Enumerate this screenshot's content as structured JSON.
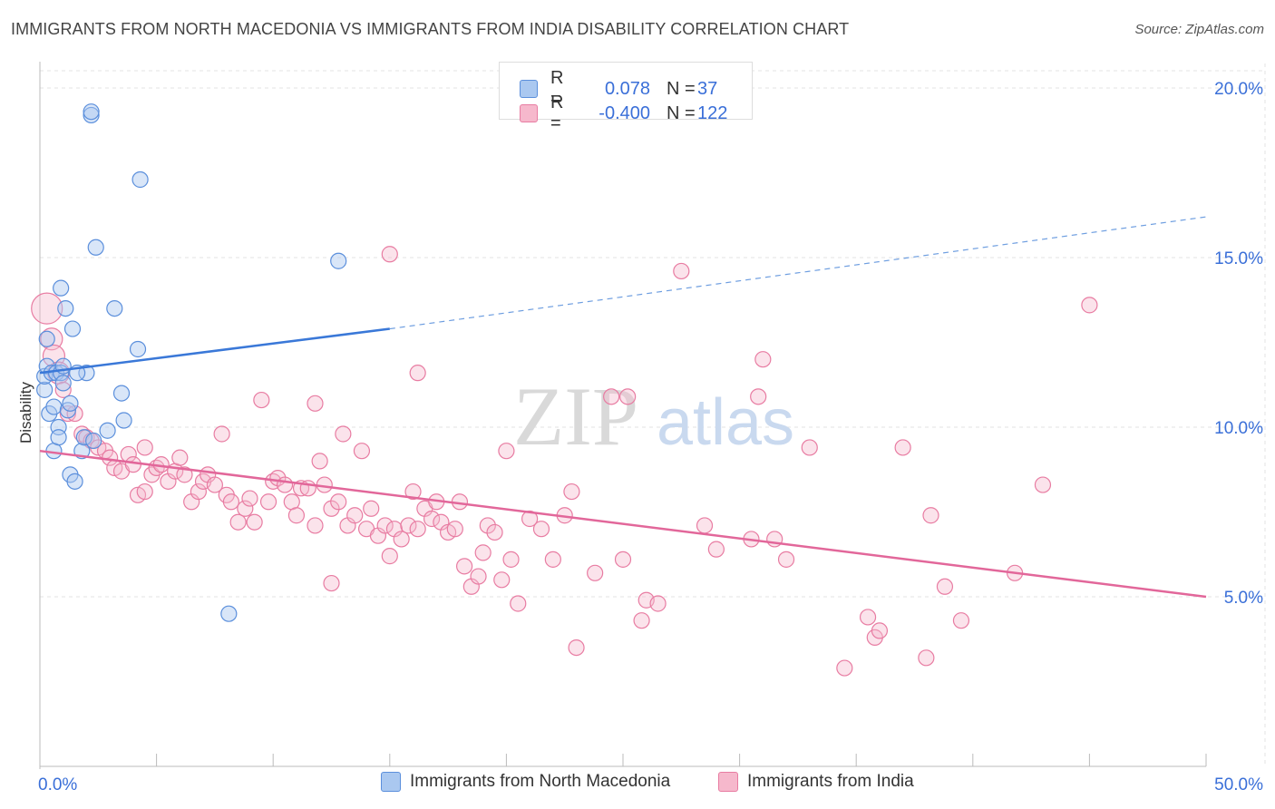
{
  "title": "IMMIGRANTS FROM NORTH MACEDONIA VS IMMIGRANTS FROM INDIA DISABILITY CORRELATION CHART",
  "source": "Source: ZipAtlas.com",
  "watermark": {
    "zip": "ZIP",
    "atlas": "atlas"
  },
  "colors": {
    "blue": "#5b8fdc",
    "blue_fill": "#aac8f0",
    "pink": "#e87ca2",
    "pink_fill": "#f6b8cc",
    "axis_label": "#3a6fd8"
  },
  "legend": {
    "rows": [
      {
        "r_label": "R =",
        "r_value": "0.078",
        "n_label": "N =",
        "n_value": "37",
        "color": "#aac8f0"
      },
      {
        "r_label": "R =",
        "r_value": "-0.400",
        "n_label": "N =",
        "n_value": "122",
        "color": "#f6b8cc"
      }
    ]
  },
  "chart_data": {
    "type": "scatter",
    "xlabel": "",
    "ylabel": "Disability",
    "xlim": [
      0,
      50
    ],
    "ylim": [
      0,
      21
    ],
    "x_tick_labels": [
      "0.0%",
      "50.0%"
    ],
    "y_tick_labels": [
      "5.0%",
      "10.0%",
      "15.0%",
      "20.0%"
    ],
    "y_ticks": [
      5,
      10,
      15,
      20
    ],
    "series": [
      {
        "name": "Immigrants from North Macedonia",
        "color": "#5b8fdc",
        "trend": {
          "x0": 0,
          "y0": 11.6,
          "x1": 15,
          "y1": 12.9,
          "x_dash_end": 50,
          "y_dash_end": 16.2
        },
        "points": [
          [
            0.2,
            11.1
          ],
          [
            0.2,
            11.5
          ],
          [
            0.3,
            12.6
          ],
          [
            0.3,
            11.8
          ],
          [
            0.5,
            11.6
          ],
          [
            0.4,
            10.4
          ],
          [
            0.6,
            10.6
          ],
          [
            0.6,
            9.3
          ],
          [
            0.7,
            11.6
          ],
          [
            0.8,
            10.0
          ],
          [
            0.8,
            9.7
          ],
          [
            0.9,
            14.1
          ],
          [
            0.9,
            11.6
          ],
          [
            1.0,
            11.8
          ],
          [
            1.0,
            11.3
          ],
          [
            1.1,
            13.5
          ],
          [
            1.2,
            10.5
          ],
          [
            1.3,
            10.7
          ],
          [
            1.4,
            12.9
          ],
          [
            1.3,
            8.6
          ],
          [
            1.5,
            8.4
          ],
          [
            1.8,
            9.3
          ],
          [
            1.9,
            9.7
          ],
          [
            2.0,
            11.6
          ],
          [
            2.2,
            19.2
          ],
          [
            2.2,
            19.3
          ],
          [
            2.4,
            15.3
          ],
          [
            2.9,
            9.9
          ],
          [
            3.2,
            13.5
          ],
          [
            3.5,
            11.0
          ],
          [
            3.6,
            10.2
          ],
          [
            4.2,
            12.3
          ],
          [
            4.3,
            17.3
          ],
          [
            8.1,
            4.5
          ],
          [
            12.8,
            14.9
          ],
          [
            1.6,
            11.6
          ],
          [
            2.3,
            9.6
          ]
        ]
      },
      {
        "name": "Immigrants from India",
        "color": "#e87ca2",
        "trend": {
          "x0": 0,
          "y0": 9.3,
          "x1": 50,
          "y1": 5.0
        },
        "points": [
          [
            0.3,
            13.5
          ],
          [
            0.5,
            12.6
          ],
          [
            0.6,
            12.1
          ],
          [
            0.8,
            11.6
          ],
          [
            1.0,
            11.1
          ],
          [
            1.2,
            10.4
          ],
          [
            1.5,
            10.4
          ],
          [
            1.8,
            9.8
          ],
          [
            2.0,
            9.7
          ],
          [
            2.2,
            9.6
          ],
          [
            2.5,
            9.4
          ],
          [
            2.8,
            9.3
          ],
          [
            3.0,
            9.1
          ],
          [
            3.2,
            8.8
          ],
          [
            3.5,
            8.7
          ],
          [
            3.8,
            9.2
          ],
          [
            4.0,
            8.9
          ],
          [
            4.2,
            8.0
          ],
          [
            4.5,
            8.1
          ],
          [
            4.5,
            9.4
          ],
          [
            4.8,
            8.6
          ],
          [
            5.0,
            8.8
          ],
          [
            5.2,
            8.9
          ],
          [
            5.5,
            8.4
          ],
          [
            5.8,
            8.7
          ],
          [
            6.0,
            9.1
          ],
          [
            6.2,
            8.6
          ],
          [
            6.5,
            7.8
          ],
          [
            6.8,
            8.1
          ],
          [
            7.0,
            8.4
          ],
          [
            7.2,
            8.6
          ],
          [
            7.5,
            8.3
          ],
          [
            7.8,
            9.8
          ],
          [
            8.0,
            8.0
          ],
          [
            8.2,
            7.8
          ],
          [
            8.5,
            7.2
          ],
          [
            8.8,
            7.6
          ],
          [
            9.0,
            7.9
          ],
          [
            9.2,
            7.2
          ],
          [
            9.5,
            10.8
          ],
          [
            9.8,
            7.8
          ],
          [
            10.0,
            8.4
          ],
          [
            10.2,
            8.5
          ],
          [
            10.5,
            8.3
          ],
          [
            10.8,
            7.8
          ],
          [
            11.0,
            7.4
          ],
          [
            11.2,
            8.2
          ],
          [
            11.5,
            8.2
          ],
          [
            11.8,
            7.1
          ],
          [
            12.0,
            9.0
          ],
          [
            12.2,
            8.3
          ],
          [
            12.5,
            7.6
          ],
          [
            12.8,
            7.8
          ],
          [
            13.0,
            9.8
          ],
          [
            13.2,
            7.1
          ],
          [
            13.5,
            7.4
          ],
          [
            13.8,
            9.3
          ],
          [
            14.0,
            7.0
          ],
          [
            14.2,
            7.6
          ],
          [
            14.5,
            6.8
          ],
          [
            14.8,
            7.1
          ],
          [
            15.0,
            6.2
          ],
          [
            15.2,
            7.0
          ],
          [
            15.5,
            6.7
          ],
          [
            15.8,
            7.1
          ],
          [
            16.0,
            8.1
          ],
          [
            16.2,
            7.0
          ],
          [
            16.5,
            7.6
          ],
          [
            16.8,
            7.3
          ],
          [
            17.0,
            7.8
          ],
          [
            17.2,
            7.2
          ],
          [
            17.5,
            6.9
          ],
          [
            17.8,
            7.0
          ],
          [
            18.0,
            7.8
          ],
          [
            18.2,
            5.9
          ],
          [
            18.5,
            5.3
          ],
          [
            18.8,
            5.6
          ],
          [
            19.0,
            6.3
          ],
          [
            19.2,
            7.1
          ],
          [
            19.5,
            6.9
          ],
          [
            19.8,
            5.5
          ],
          [
            20.0,
            9.3
          ],
          [
            20.2,
            6.1
          ],
          [
            20.5,
            4.8
          ],
          [
            21.0,
            7.3
          ],
          [
            21.5,
            7.0
          ],
          [
            22.0,
            6.1
          ],
          [
            22.5,
            7.4
          ],
          [
            22.8,
            8.1
          ],
          [
            23.0,
            3.5
          ],
          [
            23.8,
            5.7
          ],
          [
            24.5,
            10.9
          ],
          [
            25.0,
            6.1
          ],
          [
            25.2,
            10.9
          ],
          [
            25.8,
            4.3
          ],
          [
            26.0,
            4.9
          ],
          [
            26.5,
            4.8
          ],
          [
            27.5,
            14.6
          ],
          [
            28.5,
            7.1
          ],
          [
            29.0,
            6.4
          ],
          [
            30.5,
            6.7
          ],
          [
            30.8,
            10.9
          ],
          [
            31.0,
            12.0
          ],
          [
            31.5,
            6.7
          ],
          [
            32.0,
            6.1
          ],
          [
            33.0,
            9.4
          ],
          [
            34.5,
            2.9
          ],
          [
            35.5,
            4.4
          ],
          [
            35.8,
            3.8
          ],
          [
            36.0,
            4.0
          ],
          [
            37.0,
            9.4
          ],
          [
            38.0,
            3.2
          ],
          [
            38.2,
            7.4
          ],
          [
            38.8,
            5.3
          ],
          [
            39.5,
            4.3
          ],
          [
            41.8,
            5.7
          ],
          [
            43.0,
            8.3
          ],
          [
            45.0,
            13.6
          ],
          [
            15.0,
            15.1
          ],
          [
            11.8,
            10.7
          ],
          [
            16.2,
            11.6
          ],
          [
            12.5,
            5.4
          ]
        ]
      }
    ]
  }
}
